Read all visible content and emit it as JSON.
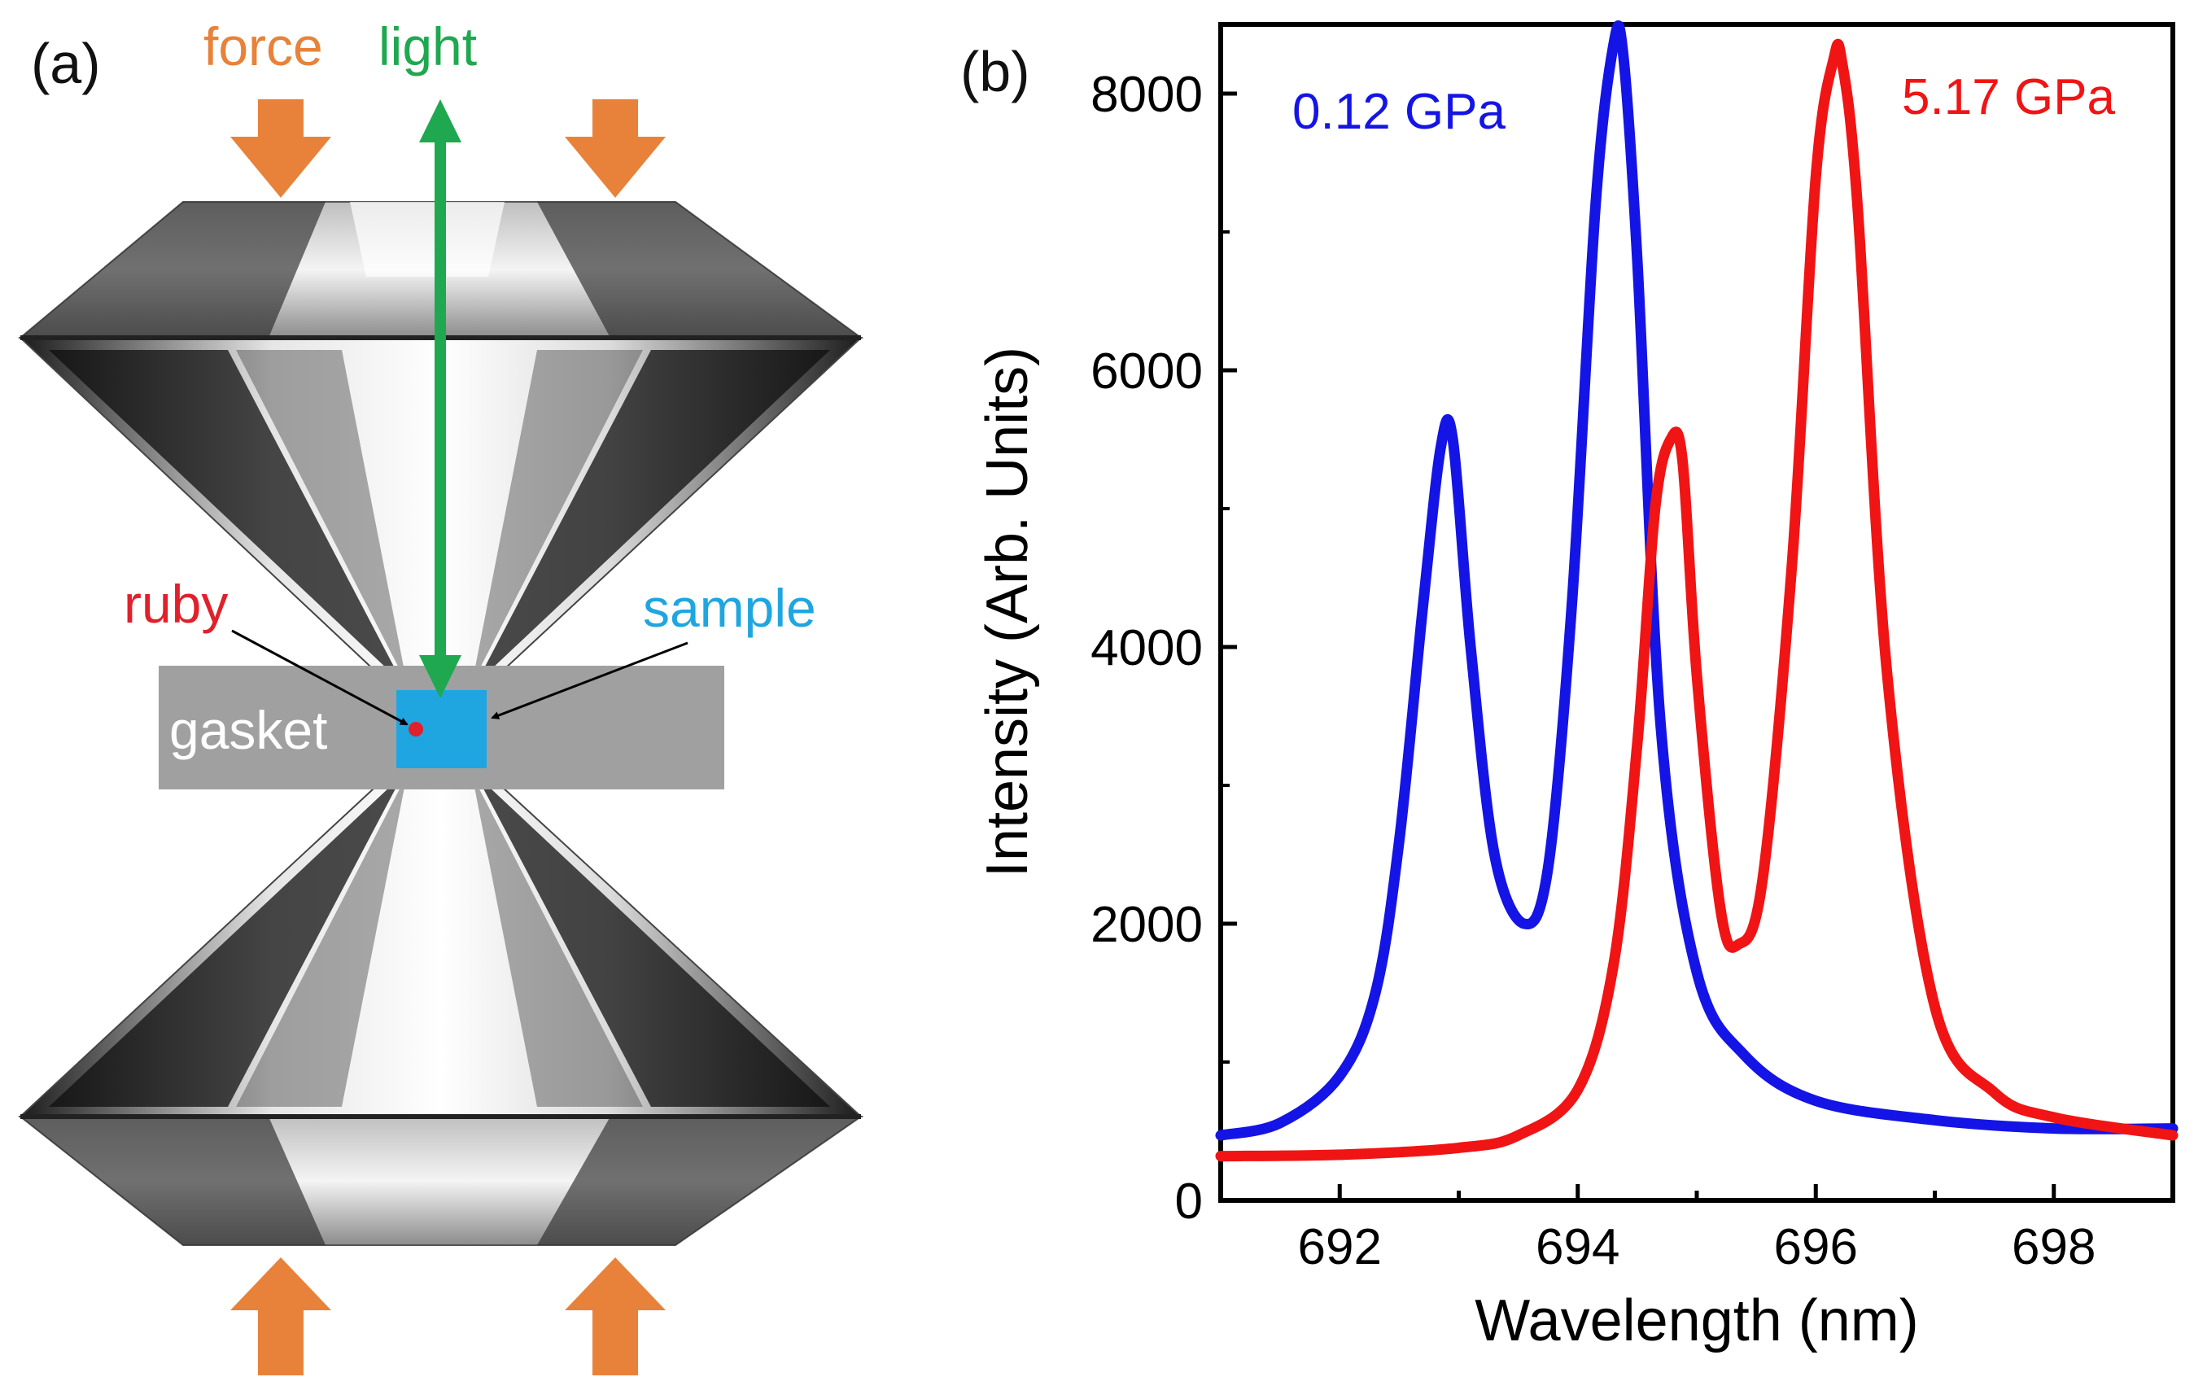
{
  "panel_a": {
    "label": "(a)",
    "force_label": "force",
    "light_label": "light",
    "ruby_label": "ruby",
    "sample_label": "sample",
    "gasket_label": "gasket",
    "colors": {
      "force": "#e8823a",
      "light": "#1fa84f",
      "ruby": "#e0202a",
      "sample": "#1fa6e0",
      "gasket": "#a0a0a0"
    }
  },
  "panel_b": {
    "label": "(b)"
  },
  "chart_data": {
    "type": "line",
    "title": "",
    "xlabel": "Wavelength (nm)",
    "ylabel": "Intensity (Arb. Units)",
    "xlim": [
      691,
      699
    ],
    "ylim": [
      0,
      8500
    ],
    "xticks": [
      692,
      694,
      696,
      698
    ],
    "yticks": [
      0,
      2000,
      4000,
      6000,
      8000
    ],
    "xtick_labels": [
      "692",
      "694",
      "696",
      "698"
    ],
    "ytick_labels": [
      "0",
      "2000",
      "4000",
      "6000",
      "8000"
    ],
    "grid": false,
    "series": [
      {
        "name": "0.12 GPa",
        "color": "#1414e6",
        "x": [
          691.0,
          691.5,
          692.0,
          692.3,
          692.5,
          692.7,
          692.85,
          692.95,
          693.1,
          693.3,
          693.55,
          693.75,
          693.95,
          694.15,
          694.3,
          694.38,
          694.5,
          694.7,
          695.0,
          695.4,
          696.0,
          697.0,
          698.0,
          699.0
        ],
        "values": [
          470,
          560,
          900,
          1500,
          2600,
          4300,
          5450,
          5500,
          4000,
          2500,
          2000,
          2400,
          4300,
          7200,
          8350,
          8300,
          6800,
          3400,
          1650,
          1050,
          720,
          580,
          520,
          520
        ]
      },
      {
        "name": "5.17 GPa",
        "color": "#f01414",
        "x": [
          691.0,
          692.0,
          693.0,
          693.5,
          694.0,
          694.3,
          694.5,
          694.65,
          694.78,
          694.88,
          695.0,
          695.2,
          695.35,
          695.55,
          695.8,
          696.0,
          696.15,
          696.22,
          696.35,
          696.6,
          697.0,
          697.5,
          698.0,
          699.0
        ],
        "values": [
          320,
          330,
          380,
          470,
          800,
          1700,
          3300,
          5000,
          5500,
          5350,
          3800,
          2100,
          1850,
          2300,
          4600,
          7400,
          8250,
          8230,
          7200,
          3800,
          1400,
          780,
          600,
          470
        ]
      }
    ],
    "annotations": [
      {
        "text": "0.12 GPa",
        "color": "#1414e6",
        "position": "top-left"
      },
      {
        "text": "5.17 GPa",
        "color": "#f01414",
        "position": "top-right"
      }
    ]
  }
}
